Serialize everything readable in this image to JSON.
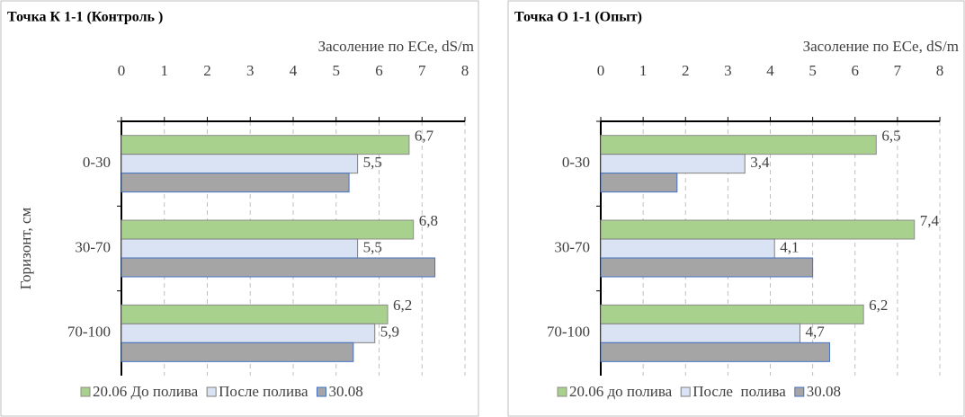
{
  "chart_data": [
    {
      "type": "bar",
      "orientation": "horizontal",
      "title": "Точка К 1-1 (Контроль )",
      "xlabel": "Засоление по ECe, dS/m",
      "ylabel": "Горизонт, см",
      "categories": [
        "0-30",
        "30-70",
        "70-100"
      ],
      "series": [
        {
          "name": "20.06 До полива",
          "color": "#a9d18e",
          "values": [
            6.7,
            6.8,
            6.2
          ],
          "value_labels": [
            "6,7",
            "6,8",
            "6,2"
          ]
        },
        {
          "name": "После полива",
          "color": "#dae3f3",
          "values": [
            5.5,
            5.5,
            5.9
          ],
          "value_labels": [
            "5,5",
            "5,5",
            "5,9"
          ]
        },
        {
          "name": "30.08",
          "color": "#a5a5a5",
          "values": [
            5.3,
            7.3,
            5.4
          ]
        }
      ],
      "xlim": [
        0,
        8
      ],
      "xticks": [
        0,
        1,
        2,
        3,
        4,
        5,
        6,
        7,
        8
      ],
      "grid": true,
      "legend": "bottom"
    },
    {
      "type": "bar",
      "orientation": "horizontal",
      "title": "Точка О 1-1 (Опыт)",
      "xlabel": "Засоление по ECe, dS/m",
      "categories": [
        "0-30",
        "30-70",
        "70-100"
      ],
      "series": [
        {
          "name": "20.06 до полива",
          "color": "#a9d18e",
          "values": [
            6.5,
            7.4,
            6.2
          ],
          "value_labels": [
            "6,5",
            "7,4",
            "6,2"
          ]
        },
        {
          "name": "После  полива",
          "color": "#dae3f3",
          "values": [
            3.4,
            4.1,
            4.7
          ],
          "value_labels": [
            "3,4",
            "4,1",
            "4,7"
          ]
        },
        {
          "name": "30.08",
          "color": "#a5a5a5",
          "values": [
            1.8,
            5.0,
            5.4
          ]
        }
      ],
      "xlim": [
        0,
        8
      ],
      "xticks": [
        0,
        1,
        2,
        3,
        4,
        5,
        6,
        7,
        8
      ],
      "grid": true,
      "legend": "bottom"
    }
  ]
}
